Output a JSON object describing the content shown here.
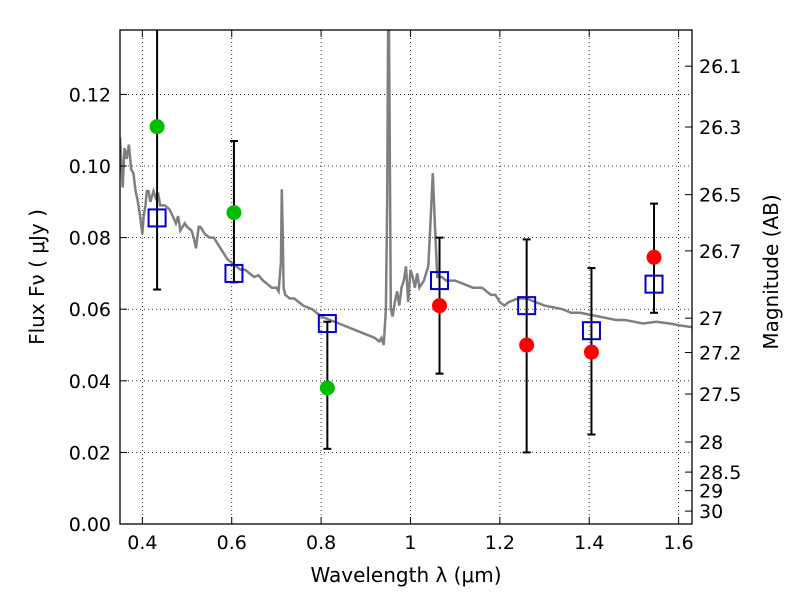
{
  "chart_data": {
    "type": "scatter",
    "xlabel": "Wavelength  λ (μm)",
    "ylabel": "Flux  Fν  ( μJy )",
    "y2label": "Magnitude (AB)",
    "xlim": [
      0.35,
      1.63
    ],
    "ylim": [
      0.0,
      0.138
    ],
    "grid": true,
    "x_ticks": [
      0.4,
      0.6,
      0.8,
      1.0,
      1.2,
      1.4,
      1.6
    ],
    "x_tick_labels": [
      "0.4",
      "0.6",
      "0.8",
      "1",
      "1.2",
      "1.4",
      "1.6"
    ],
    "y_ticks": [
      0.0,
      0.02,
      0.04,
      0.06,
      0.08,
      0.1,
      0.12
    ],
    "y_tick_labels": [
      "0.00",
      "0.02",
      "0.04",
      "0.06",
      "0.08",
      "0.10",
      "0.12"
    ],
    "magnitude_ticks": [
      {
        "flux": 0.1279,
        "label": "26.1"
      },
      {
        "flux": 0.1109,
        "label": "26.3"
      },
      {
        "flux": 0.092,
        "label": "26.5"
      },
      {
        "flux": 0.0763,
        "label": "26.7"
      },
      {
        "flux": 0.0575,
        "label": "27"
      },
      {
        "flux": 0.0479,
        "label": "27.2"
      },
      {
        "flux": 0.0363,
        "label": "27.5"
      },
      {
        "flux": 0.0229,
        "label": "28"
      },
      {
        "flux": 0.0145,
        "label": "28.5"
      },
      {
        "flux": 0.0093,
        "label": "29"
      },
      {
        "flux": 0.0036,
        "label": "30"
      }
    ],
    "colors": {
      "model": "#7f7f7f",
      "green": "#00bf00",
      "red": "#ff0000",
      "model_photometry": "#0000cc",
      "errorbar": "#000000"
    },
    "series": [
      {
        "kind": "line",
        "points": [
          [
            0.35,
            0.108
          ],
          [
            0.356,
            0.094
          ],
          [
            0.36,
            0.105
          ],
          [
            0.365,
            0.102
          ],
          [
            0.37,
            0.106
          ],
          [
            0.375,
            0.099
          ],
          [
            0.38,
            0.098
          ],
          [
            0.385,
            0.093
          ],
          [
            0.39,
            0.09
          ],
          [
            0.395,
            0.086
          ],
          [
            0.4,
            0.081
          ],
          [
            0.403,
            0.086
          ],
          [
            0.407,
            0.089
          ],
          [
            0.41,
            0.093
          ],
          [
            0.414,
            0.093
          ],
          [
            0.418,
            0.09
          ],
          [
            0.425,
            0.093
          ],
          [
            0.43,
            0.091
          ],
          [
            0.436,
            0.092
          ],
          [
            0.44,
            0.089
          ],
          [
            0.45,
            0.089
          ],
          [
            0.46,
            0.088
          ],
          [
            0.468,
            0.086
          ],
          [
            0.475,
            0.084
          ],
          [
            0.48,
            0.086
          ],
          [
            0.485,
            0.082
          ],
          [
            0.495,
            0.084
          ],
          [
            0.5,
            0.083
          ],
          [
            0.51,
            0.082
          ],
          [
            0.515,
            0.08
          ],
          [
            0.52,
            0.077
          ],
          [
            0.526,
            0.083
          ],
          [
            0.53,
            0.083
          ],
          [
            0.54,
            0.081
          ],
          [
            0.55,
            0.08
          ],
          [
            0.56,
            0.08
          ],
          [
            0.57,
            0.078
          ],
          [
            0.58,
            0.076
          ],
          [
            0.59,
            0.074
          ],
          [
            0.6,
            0.073
          ],
          [
            0.61,
            0.072
          ],
          [
            0.62,
            0.071
          ],
          [
            0.63,
            0.071
          ],
          [
            0.64,
            0.07
          ],
          [
            0.65,
            0.069
          ],
          [
            0.66,
            0.0695
          ],
          [
            0.67,
            0.068
          ],
          [
            0.68,
            0.067
          ],
          [
            0.69,
            0.066
          ],
          [
            0.7,
            0.066
          ],
          [
            0.705,
            0.065
          ],
          [
            0.71,
            0.073
          ],
          [
            0.712,
            0.0935
          ],
          [
            0.714,
            0.082
          ],
          [
            0.716,
            0.066
          ],
          [
            0.72,
            0.064
          ],
          [
            0.73,
            0.063
          ],
          [
            0.74,
            0.063
          ],
          [
            0.75,
            0.062
          ],
          [
            0.76,
            0.061
          ],
          [
            0.78,
            0.06
          ],
          [
            0.8,
            0.058
          ],
          [
            0.82,
            0.057
          ],
          [
            0.84,
            0.056
          ],
          [
            0.86,
            0.055
          ],
          [
            0.88,
            0.054
          ],
          [
            0.9,
            0.053
          ],
          [
            0.92,
            0.052
          ],
          [
            0.93,
            0.051
          ],
          [
            0.935,
            0.052
          ],
          [
            0.94,
            0.05
          ],
          [
            0.945,
            0.06
          ],
          [
            0.948,
            0.09
          ],
          [
            0.95,
            0.138
          ],
          [
            0.952,
            0.138
          ],
          [
            0.954,
            0.1
          ],
          [
            0.956,
            0.06
          ],
          [
            0.96,
            0.058
          ],
          [
            0.965,
            0.062
          ],
          [
            0.97,
            0.065
          ],
          [
            0.975,
            0.061
          ],
          [
            0.98,
            0.066
          ],
          [
            0.985,
            0.068
          ],
          [
            0.99,
            0.072
          ],
          [
            0.995,
            0.062
          ],
          [
            1.0,
            0.071
          ],
          [
            1.005,
            0.069
          ],
          [
            1.01,
            0.066
          ],
          [
            1.015,
            0.07
          ],
          [
            1.02,
            0.066
          ],
          [
            1.025,
            0.067
          ],
          [
            1.03,
            0.068
          ],
          [
            1.035,
            0.07
          ],
          [
            1.04,
            0.072
          ],
          [
            1.045,
            0.085
          ],
          [
            1.05,
            0.098
          ],
          [
            1.055,
            0.083
          ],
          [
            1.06,
            0.069
          ],
          [
            1.07,
            0.069
          ],
          [
            1.08,
            0.068
          ],
          [
            1.1,
            0.068
          ],
          [
            1.12,
            0.067
          ],
          [
            1.14,
            0.066
          ],
          [
            1.16,
            0.066
          ],
          [
            1.18,
            0.064
          ],
          [
            1.19,
            0.064
          ],
          [
            1.2,
            0.062
          ],
          [
            1.21,
            0.061
          ],
          [
            1.22,
            0.062
          ],
          [
            1.24,
            0.063
          ],
          [
            1.26,
            0.063
          ],
          [
            1.28,
            0.062
          ],
          [
            1.3,
            0.061
          ],
          [
            1.32,
            0.0605
          ],
          [
            1.34,
            0.06
          ],
          [
            1.36,
            0.059
          ],
          [
            1.38,
            0.059
          ],
          [
            1.4,
            0.0585
          ],
          [
            1.42,
            0.058
          ],
          [
            1.44,
            0.0575
          ],
          [
            1.46,
            0.057
          ],
          [
            1.48,
            0.057
          ],
          [
            1.5,
            0.0565
          ],
          [
            1.52,
            0.056
          ],
          [
            1.55,
            0.0565
          ],
          [
            1.58,
            0.056
          ],
          [
            1.6,
            0.0555
          ],
          [
            1.63,
            0.055
          ]
        ]
      },
      {
        "kind": "points",
        "points": [
          {
            "x": 0.433,
            "y": 0.111,
            "err_lo": 0.0655,
            "err_hi": 0.138
          },
          {
            "x": 0.605,
            "y": 0.087,
            "err_lo": 0.0675,
            "err_hi": 0.107
          },
          {
            "x": 0.814,
            "y": 0.038,
            "err_lo": 0.021,
            "err_hi": 0.0565
          }
        ]
      },
      {
        "kind": "points",
        "points": [
          {
            "x": 1.065,
            "y": 0.061,
            "err_lo": 0.042,
            "err_hi": 0.08
          },
          {
            "x": 1.26,
            "y": 0.05,
            "err_lo": 0.02,
            "err_hi": 0.0795
          },
          {
            "x": 1.405,
            "y": 0.048,
            "err_lo": 0.025,
            "err_hi": 0.0715
          },
          {
            "x": 1.545,
            "y": 0.0745,
            "err_lo": 0.059,
            "err_hi": 0.0895
          }
        ]
      },
      {
        "kind": "open_squares",
        "points": [
          {
            "x": 0.433,
            "y": 0.0855
          },
          {
            "x": 0.605,
            "y": 0.07
          },
          {
            "x": 0.814,
            "y": 0.056
          },
          {
            "x": 1.065,
            "y": 0.068
          },
          {
            "x": 1.26,
            "y": 0.061
          },
          {
            "x": 1.405,
            "y": 0.054
          },
          {
            "x": 1.545,
            "y": 0.067
          }
        ]
      }
    ]
  }
}
